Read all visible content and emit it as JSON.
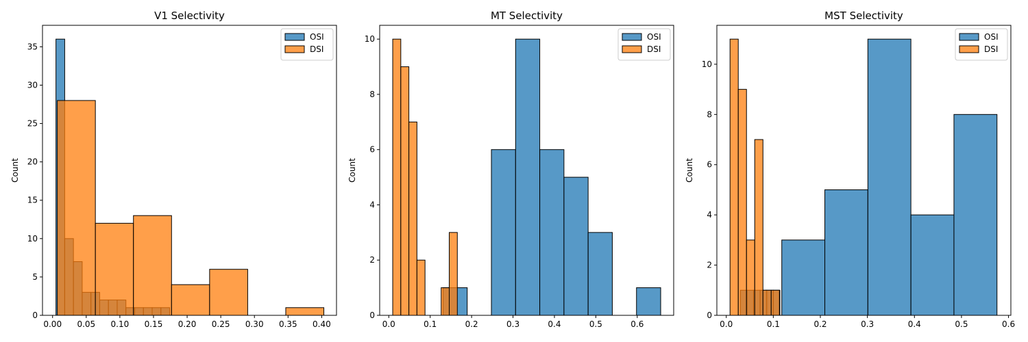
{
  "chart_data": [
    {
      "type": "bar",
      "title": "V1 Selectivity",
      "xlabel": "",
      "ylabel": "Count",
      "xlim": [
        -0.015,
        0.422
      ],
      "ylim": [
        0,
        37.8
      ],
      "xticks": [
        0.0,
        0.05,
        0.1,
        0.15,
        0.2,
        0.25,
        0.3,
        0.35,
        0.4
      ],
      "xtick_labels": [
        "0.00",
        "0.05",
        "0.10",
        "0.15",
        "0.20",
        "0.25",
        "0.30",
        "0.35",
        "0.40"
      ],
      "yticks": [
        0,
        5,
        10,
        15,
        20,
        25,
        30,
        35
      ],
      "ytick_labels": [
        "0",
        "5",
        "10",
        "15",
        "20",
        "25",
        "30",
        "35"
      ],
      "legend_position": "top-right",
      "series": [
        {
          "name": "OSI",
          "color": "#1f77b4",
          "bins": [
            {
              "x0": 0.005,
              "x1": 0.018,
              "count": 36
            },
            {
              "x0": 0.018,
              "x1": 0.031,
              "count": 10
            },
            {
              "x0": 0.031,
              "x1": 0.044,
              "count": 7
            },
            {
              "x0": 0.044,
              "x1": 0.057,
              "count": 3
            },
            {
              "x0": 0.057,
              "x1": 0.07,
              "count": 3
            },
            {
              "x0": 0.07,
              "x1": 0.083,
              "count": 2
            },
            {
              "x0": 0.083,
              "x1": 0.096,
              "count": 2
            },
            {
              "x0": 0.096,
              "x1": 0.109,
              "count": 2
            },
            {
              "x0": 0.109,
              "x1": 0.122,
              "count": 1
            },
            {
              "x0": 0.122,
              "x1": 0.135,
              "count": 1
            },
            {
              "x0": 0.135,
              "x1": 0.148,
              "count": 1
            },
            {
              "x0": 0.148,
              "x1": 0.161,
              "count": 1
            },
            {
              "x0": 0.161,
              "x1": 0.174,
              "count": 1
            }
          ]
        },
        {
          "name": "DSI",
          "color": "#ff7f0e",
          "bins": [
            {
              "x0": 0.007,
              "x1": 0.0636,
              "count": 28
            },
            {
              "x0": 0.0636,
              "x1": 0.1202,
              "count": 12
            },
            {
              "x0": 0.1202,
              "x1": 0.1768,
              "count": 13
            },
            {
              "x0": 0.1768,
              "x1": 0.2334,
              "count": 4
            },
            {
              "x0": 0.2334,
              "x1": 0.29,
              "count": 6
            },
            {
              "x0": 0.29,
              "x1": 0.3466,
              "count": 0
            },
            {
              "x0": 0.3466,
              "x1": 0.4032,
              "count": 1
            }
          ]
        }
      ]
    },
    {
      "type": "bar",
      "title": "MT Selectivity",
      "xlabel": "",
      "ylabel": "Count",
      "xlim": [
        -0.022,
        0.688
      ],
      "ylim": [
        0,
        10.5
      ],
      "xticks": [
        0.0,
        0.1,
        0.2,
        0.3,
        0.4,
        0.5,
        0.6
      ],
      "xtick_labels": [
        "0.0",
        "0.1",
        "0.2",
        "0.3",
        "0.4",
        "0.5",
        "0.6"
      ],
      "yticks": [
        0,
        2,
        4,
        6,
        8,
        10
      ],
      "ytick_labels": [
        "0",
        "2",
        "4",
        "6",
        "8",
        "10"
      ],
      "legend_position": "top-right",
      "series": [
        {
          "name": "OSI",
          "color": "#1f77b4",
          "bins": [
            {
              "x0": 0.131,
              "x1": 0.1894,
              "count": 1
            },
            {
              "x0": 0.1894,
              "x1": 0.2478,
              "count": 0
            },
            {
              "x0": 0.2478,
              "x1": 0.3062,
              "count": 6
            },
            {
              "x0": 0.3062,
              "x1": 0.3646,
              "count": 10
            },
            {
              "x0": 0.3646,
              "x1": 0.423,
              "count": 6
            },
            {
              "x0": 0.423,
              "x1": 0.4814,
              "count": 5
            },
            {
              "x0": 0.4814,
              "x1": 0.5398,
              "count": 3
            },
            {
              "x0": 0.5398,
              "x1": 0.5982,
              "count": 0
            },
            {
              "x0": 0.5982,
              "x1": 0.6566,
              "count": 1
            }
          ]
        },
        {
          "name": "DSI",
          "color": "#ff7f0e",
          "bins": [
            {
              "x0": 0.0095,
              "x1": 0.029,
              "count": 10
            },
            {
              "x0": 0.029,
              "x1": 0.0485,
              "count": 9
            },
            {
              "x0": 0.0485,
              "x1": 0.068,
              "count": 7
            },
            {
              "x0": 0.068,
              "x1": 0.0875,
              "count": 2
            },
            {
              "x0": 0.0875,
              "x1": 0.107,
              "count": 0
            },
            {
              "x0": 0.107,
              "x1": 0.1265,
              "count": 0
            },
            {
              "x0": 0.1265,
              "x1": 0.146,
              "count": 1
            },
            {
              "x0": 0.146,
              "x1": 0.1655,
              "count": 3
            }
          ]
        }
      ]
    },
    {
      "type": "bar",
      "title": "MST Selectivity",
      "xlabel": "",
      "ylabel": "Count",
      "xlim": [
        -0.02,
        0.605
      ],
      "ylim": [
        0,
        11.55
      ],
      "xticks": [
        0.0,
        0.1,
        0.2,
        0.3,
        0.4,
        0.5,
        0.6
      ],
      "xtick_labels": [
        "0.0",
        "0.1",
        "0.2",
        "0.3",
        "0.4",
        "0.5",
        "0.6"
      ],
      "yticks": [
        0,
        2,
        4,
        6,
        8,
        10
      ],
      "ytick_labels": [
        "0",
        "2",
        "4",
        "6",
        "8",
        "10"
      ],
      "legend_position": "top-right",
      "series": [
        {
          "name": "OSI",
          "color": "#1f77b4",
          "bins": [
            {
              "x0": 0.03,
              "x1": 0.044,
              "count": 1
            },
            {
              "x0": 0.044,
              "x1": 0.058,
              "count": 1
            },
            {
              "x0": 0.058,
              "x1": 0.072,
              "count": 1
            },
            {
              "x0": 0.072,
              "x1": 0.086,
              "count": 1
            },
            {
              "x0": 0.086,
              "x1": 0.1,
              "count": 1
            },
            {
              "x0": 0.1,
              "x1": 0.114,
              "count": 1
            },
            {
              "x0": 0.118,
              "x1": 0.2095,
              "count": 3
            },
            {
              "x0": 0.2095,
              "x1": 0.301,
              "count": 5
            },
            {
              "x0": 0.301,
              "x1": 0.3925,
              "count": 11
            },
            {
              "x0": 0.3925,
              "x1": 0.484,
              "count": 4
            },
            {
              "x0": 0.484,
              "x1": 0.5755,
              "count": 8
            }
          ]
        },
        {
          "name": "DSI",
          "color": "#ff7f0e",
          "bins": [
            {
              "x0": 0.008,
              "x1": 0.0255,
              "count": 11
            },
            {
              "x0": 0.0255,
              "x1": 0.043,
              "count": 9
            },
            {
              "x0": 0.043,
              "x1": 0.0605,
              "count": 3
            },
            {
              "x0": 0.0605,
              "x1": 0.078,
              "count": 7
            },
            {
              "x0": 0.078,
              "x1": 0.0955,
              "count": 1
            },
            {
              "x0": 0.0955,
              "x1": 0.113,
              "count": 1
            }
          ]
        }
      ]
    }
  ]
}
